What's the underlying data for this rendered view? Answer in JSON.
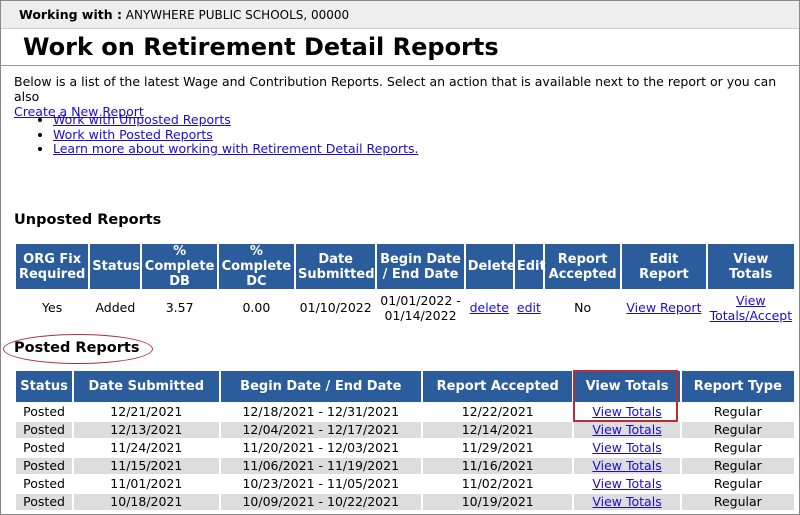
{
  "header": {
    "label": "Working with :",
    "org": "ANYWHERE PUBLIC SCHOOLS, 00000"
  },
  "title": "Work on Retirement Detail Reports",
  "intro": {
    "text": "Below is a list of the latest Wage and Contribution Reports. Select an action that is available next to the report or you can also",
    "link": "Create a New Report"
  },
  "links": [
    "Work with Unposted Reports",
    "Work with Posted Reports",
    "Learn more about working with Retirement Detail Reports."
  ],
  "unposted": {
    "heading": "Unposted Reports",
    "columns": [
      "ORG Fix Required",
      "Status",
      "% Complete DB",
      "% Complete DC",
      "Date Submitted",
      "Begin Date / End Date",
      "Delete",
      "Edit",
      "Report Accepted",
      "Edit Report",
      "View Totals"
    ],
    "rows": [
      [
        "Yes",
        "Added",
        "3.57",
        "0.00",
        "01/10/2022",
        "01/01/2022 - 01/14/2022",
        "delete",
        "edit",
        "No",
        "View Report",
        "View Totals/Accept"
      ]
    ]
  },
  "posted": {
    "heading": "Posted Reports",
    "columns": [
      "Status",
      "Date Submitted",
      "Begin Date / End Date",
      "Report Accepted",
      "View Totals",
      "Report Type"
    ],
    "rows": [
      [
        "Posted",
        "12/21/2021",
        "12/18/2021 - 12/31/2021",
        "12/22/2021",
        "View Totals",
        "Regular"
      ],
      [
        "Posted",
        "12/13/2021",
        "12/04/2021 - 12/17/2021",
        "12/14/2021",
        "View Totals",
        "Regular"
      ],
      [
        "Posted",
        "11/24/2021",
        "11/20/2021 - 12/03/2021",
        "11/29/2021",
        "View Totals",
        "Regular"
      ],
      [
        "Posted",
        "11/15/2021",
        "11/06/2021 - 11/19/2021",
        "11/16/2021",
        "View Totals",
        "Regular"
      ],
      [
        "Posted",
        "11/01/2021",
        "10/23/2021 - 11/05/2021",
        "11/02/2021",
        "View Totals",
        "Regular"
      ],
      [
        "Posted",
        "10/18/2021",
        "10/09/2021 - 10/22/2021",
        "10/19/2021",
        "View Totals",
        "Regular"
      ]
    ]
  }
}
